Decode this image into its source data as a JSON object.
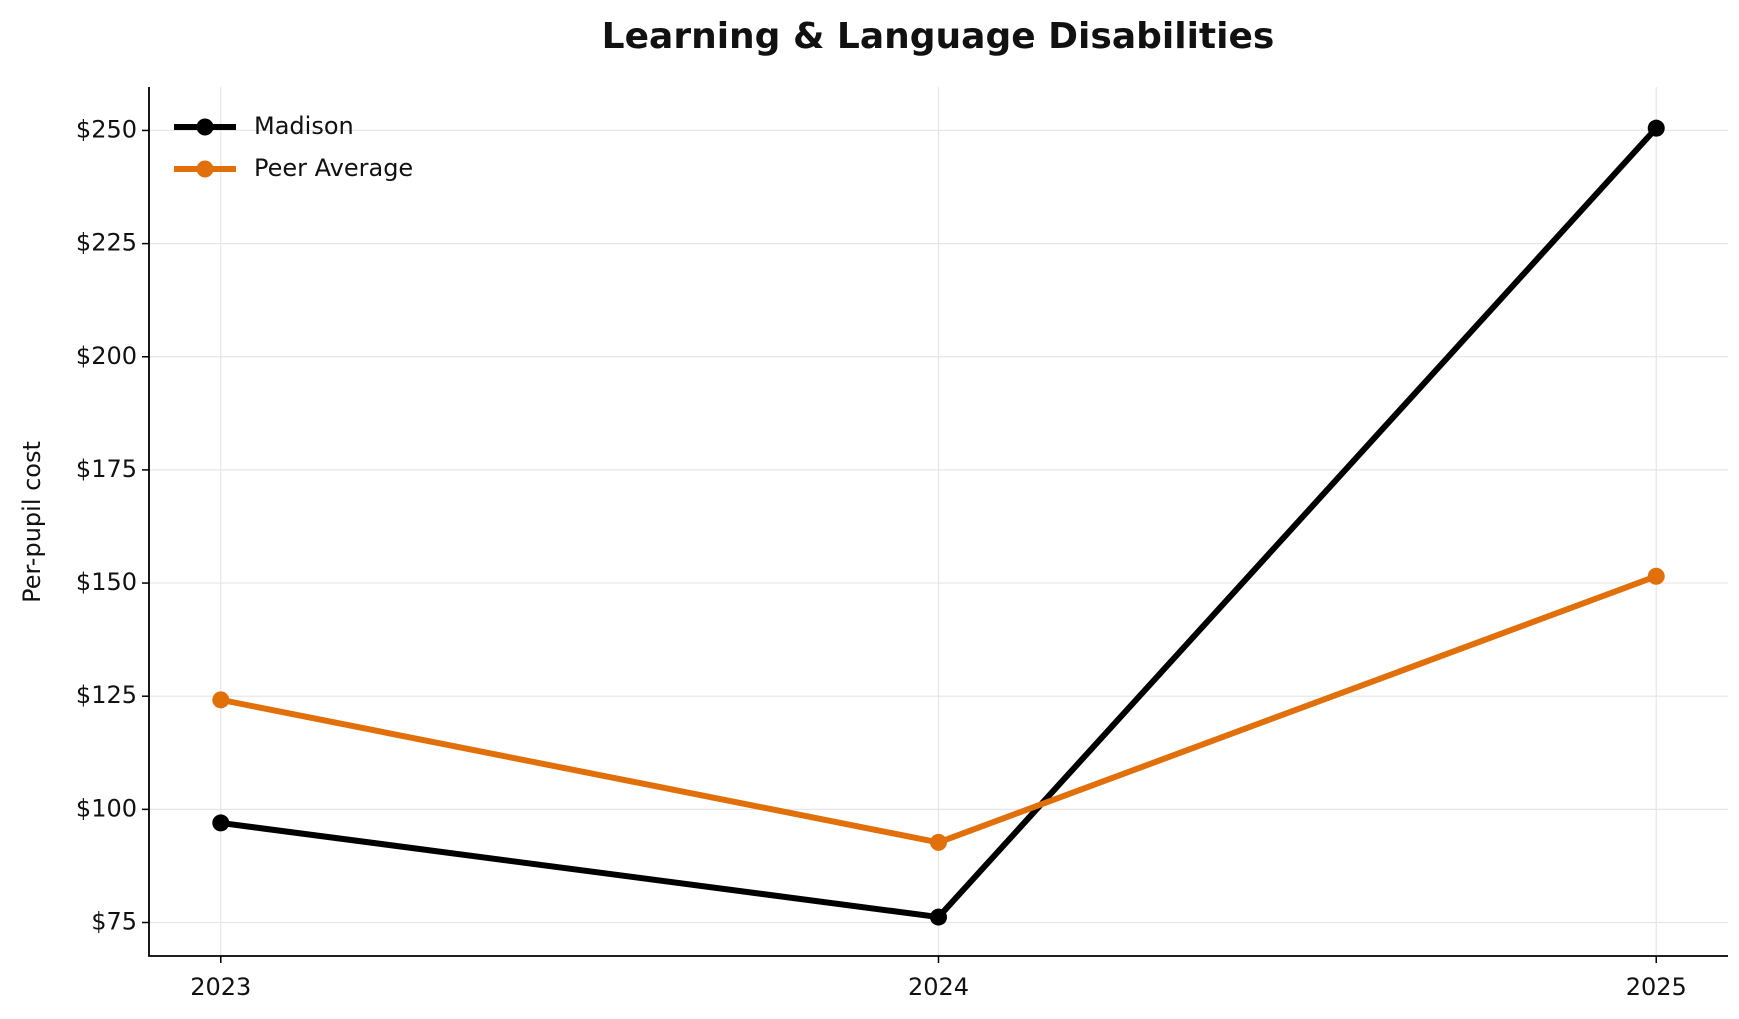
{
  "chart_data": {
    "type": "line",
    "title": "Learning & Language Disabilities",
    "y_label": "Per-pupil cost",
    "x": [
      2023,
      2024,
      2025
    ],
    "xlim": [
      2022.9,
      2025.1
    ],
    "xticks": [
      2023,
      2024,
      2025
    ],
    "ylim": [
      67.6,
      259.6
    ],
    "yticks": [
      {
        "value": 75,
        "label": "$75"
      },
      {
        "value": 100,
        "label": "$100"
      },
      {
        "value": 125,
        "label": "$125"
      },
      {
        "value": 150,
        "label": "$150"
      },
      {
        "value": 175,
        "label": "$175"
      },
      {
        "value": 200,
        "label": "$200"
      },
      {
        "value": 225,
        "label": "$225"
      },
      {
        "value": 250,
        "label": "$250"
      }
    ],
    "grid": true,
    "legend": "upper-left",
    "series": [
      {
        "name": "Madison",
        "color": "#000000",
        "values": [
          97,
          76.2,
          250.5
        ]
      },
      {
        "name": "Peer Average",
        "color": "#e1700b",
        "values": [
          124.2,
          92.7,
          151.5
        ]
      }
    ]
  }
}
